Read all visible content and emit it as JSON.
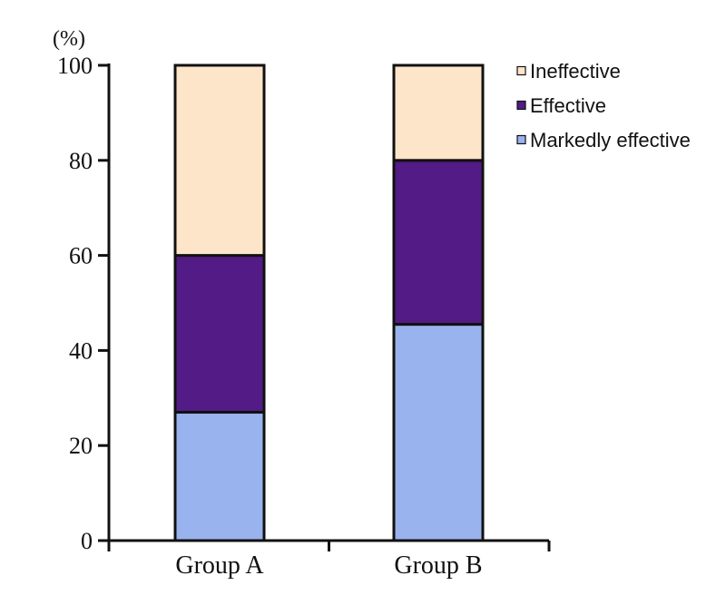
{
  "chart_data": {
    "type": "bar",
    "stacked": true,
    "unit_label": "(%)",
    "categories": [
      "Group A",
      "Group B"
    ],
    "ylim": [
      0,
      100
    ],
    "yticks": [
      0,
      20,
      40,
      60,
      80,
      100
    ],
    "series": [
      {
        "name": "Markedly effective",
        "values": [
          27,
          45.5
        ],
        "color": "#99b3ee"
      },
      {
        "name": "Effective",
        "values": [
          33,
          34.5
        ],
        "color": "#521b85"
      },
      {
        "name": "Ineffective",
        "values": [
          40,
          20
        ],
        "color": "#fde5ca"
      }
    ],
    "legend_order": [
      "Ineffective",
      "Effective",
      "Markedly effective"
    ],
    "legend_position": "top-right",
    "grid": false
  }
}
